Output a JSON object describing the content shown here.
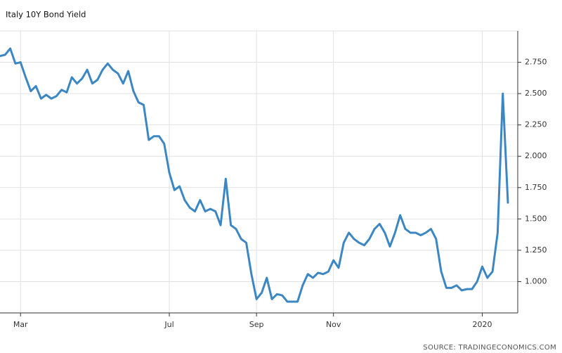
{
  "chart_data": {
    "type": "line",
    "title": "Italy 10Y Bond Yield",
    "source": "SOURCE: TRADINGECONOMICS.COM",
    "categories": [
      null,
      null,
      null,
      null,
      "Mar",
      null,
      null,
      null,
      null,
      null,
      null,
      null,
      null,
      null,
      null,
      null,
      null,
      null,
      null,
      null,
      null,
      null,
      null,
      null,
      null,
      null,
      null,
      null,
      null,
      null,
      null,
      null,
      null,
      "Jul",
      null,
      null,
      null,
      null,
      null,
      null,
      null,
      null,
      null,
      null,
      null,
      null,
      null,
      null,
      null,
      null,
      "Sep",
      null,
      null,
      null,
      null,
      null,
      null,
      null,
      null,
      null,
      null,
      null,
      null,
      null,
      null,
      "Nov",
      null,
      null,
      null,
      null,
      null,
      null,
      null,
      null,
      null,
      null,
      null,
      null,
      null,
      null,
      null,
      null,
      null,
      null,
      null,
      null,
      null,
      null,
      null,
      null,
      null,
      null,
      null,
      null,
      "2020",
      null,
      null,
      null,
      null,
      null
    ],
    "values": [
      2.8,
      2.81,
      2.86,
      2.74,
      2.75,
      2.63,
      2.52,
      2.56,
      2.46,
      2.49,
      2.46,
      2.48,
      2.53,
      2.51,
      2.63,
      2.58,
      2.62,
      2.69,
      2.58,
      2.61,
      2.69,
      2.74,
      2.69,
      2.66,
      2.58,
      2.68,
      2.52,
      2.43,
      2.41,
      2.13,
      2.16,
      2.16,
      2.1,
      1.87,
      1.73,
      1.76,
      1.65,
      1.59,
      1.56,
      1.65,
      1.56,
      1.58,
      1.56,
      1.45,
      1.82,
      1.45,
      1.42,
      1.34,
      1.31,
      1.06,
      0.86,
      0.91,
      1.03,
      0.86,
      0.9,
      0.89,
      0.84,
      0.84,
      0.84,
      0.97,
      1.06,
      1.03,
      1.07,
      1.06,
      1.08,
      1.17,
      1.11,
      1.31,
      1.39,
      1.34,
      1.31,
      1.29,
      1.34,
      1.42,
      1.46,
      1.39,
      1.28,
      1.39,
      1.53,
      1.42,
      1.39,
      1.39,
      1.37,
      1.39,
      1.42,
      1.34,
      1.08,
      0.95,
      0.95,
      0.97,
      0.93,
      0.94,
      0.94,
      1.0,
      1.12,
      1.03,
      1.08,
      1.39,
      2.5,
      1.63
    ],
    "color": "#3c87c3",
    "ylim": [
      0.75,
      3.0
    ],
    "yticks": [
      {
        "value": 1,
        "label": "1.000"
      },
      {
        "value": 1.25,
        "label": "1.250"
      },
      {
        "value": 1.5,
        "label": "1.500"
      },
      {
        "value": 1.75,
        "label": "1.750"
      },
      {
        "value": 2,
        "label": "2.000"
      },
      {
        "value": 2.25,
        "label": "2.250"
      },
      {
        "value": 2.5,
        "label": "2.500"
      },
      {
        "value": 2.75,
        "label": "2.750"
      }
    ],
    "grid": true
  }
}
